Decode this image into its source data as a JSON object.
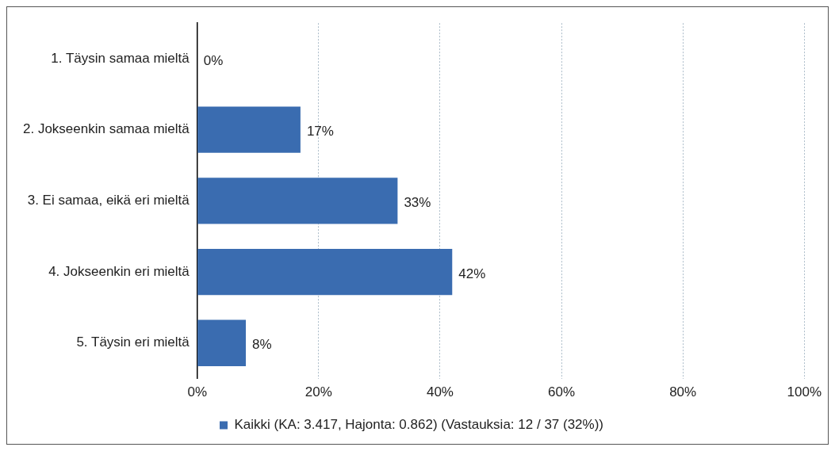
{
  "chart_data": {
    "type": "bar",
    "orientation": "horizontal",
    "categories": [
      "1. Täysin samaa mieltä",
      "2. Jokseenkin samaa mieltä",
      "3. Ei samaa, eikä eri mieltä",
      "4. Jokseenkin eri mieltä",
      "5. Täysin eri mieltä"
    ],
    "series": [
      {
        "name": "Kaikki (KA: 3.417, Hajonta: 0.862) (Vastauksia: 12 / 37 (32%))",
        "color": "#3a6cb0",
        "values": [
          0,
          17,
          33,
          42,
          8
        ],
        "value_labels": [
          "0%",
          "17%",
          "33%",
          "42%",
          "8%"
        ]
      }
    ],
    "xlim": [
      0,
      100
    ],
    "xticks": [
      {
        "value": 0,
        "label": "0%"
      },
      {
        "value": 20,
        "label": "20%"
      },
      {
        "value": 40,
        "label": "40%"
      },
      {
        "value": 60,
        "label": "60%"
      },
      {
        "value": 80,
        "label": "80%"
      },
      {
        "value": 100,
        "label": "100%"
      }
    ],
    "grid": "x",
    "legend": "bottom"
  }
}
